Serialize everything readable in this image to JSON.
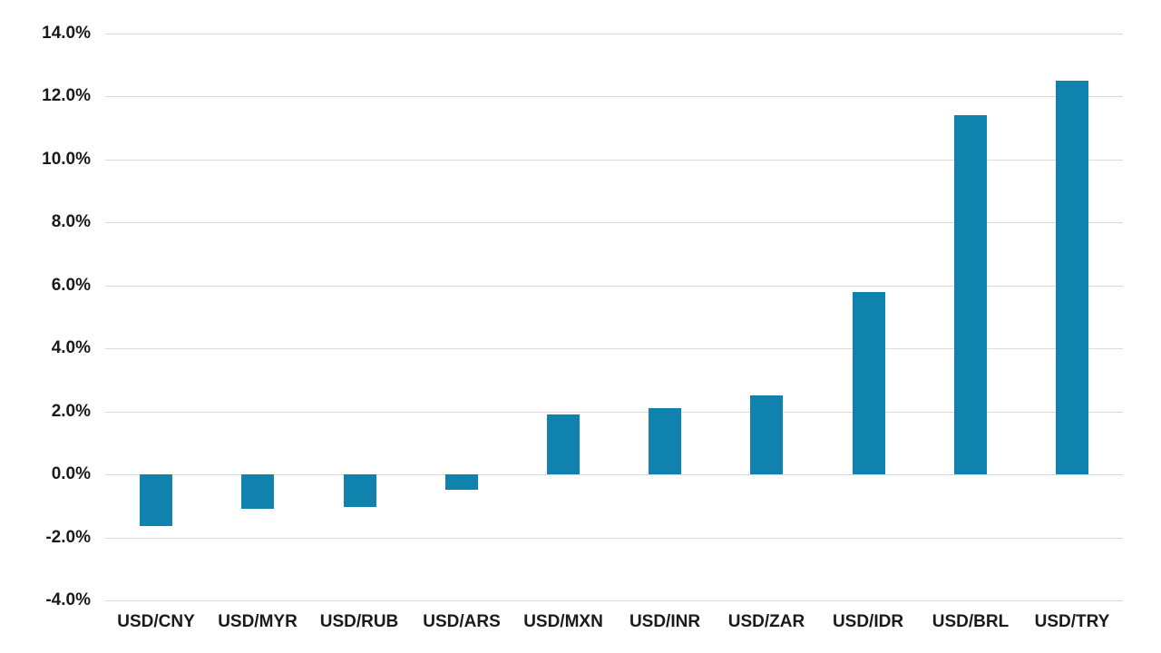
{
  "chart_data": {
    "type": "bar",
    "title": "",
    "xlabel": "",
    "ylabel": "",
    "categories": [
      "USD/CNY",
      "USD/MYR",
      "USD/RUB",
      "USD/ARS",
      "USD/MXN",
      "USD/INR",
      "USD/ZAR",
      "USD/IDR",
      "USD/BRL",
      "USD/TRY"
    ],
    "values": [
      -1.65,
      -1.1,
      -1.05,
      -0.5,
      1.9,
      2.1,
      2.5,
      5.8,
      11.4,
      12.5
    ],
    "value_unit": "%",
    "ylim": [
      -4,
      14
    ],
    "ytick_step": 2,
    "yticks": [
      14,
      12,
      10,
      8,
      6,
      4,
      2,
      0,
      -2,
      -4
    ],
    "ytick_labels": [
      "14.0%",
      "12.0%",
      "10.0%",
      "8.0%",
      "6.0%",
      "4.0%",
      "2.0%",
      "0.0%",
      "-2.0%",
      "-4.0%"
    ],
    "grid": true,
    "legend": false,
    "colors": {
      "bar": "#0f82ad",
      "gridline": "#d9d9d9",
      "tick_label": "#1a1a1a",
      "background": "#ffffff"
    }
  }
}
